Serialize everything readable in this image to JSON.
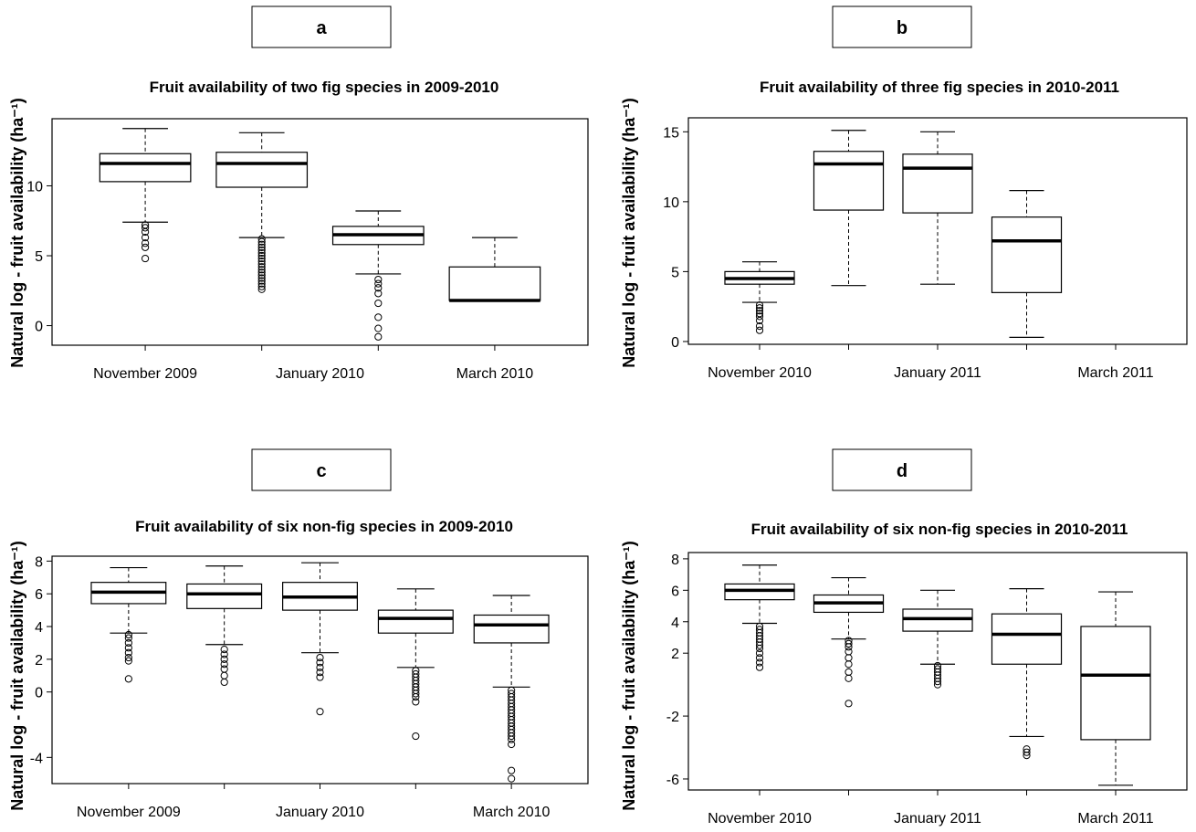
{
  "chart_data": [
    {
      "type": "box",
      "panel": "a",
      "title": "Fruit availability of two fig species in 2009-2010",
      "ylabel": "Natural log - fruit availability (ha⁻¹)",
      "ylim": [
        -1.4,
        14.8
      ],
      "yticks": [
        0,
        5,
        10
      ],
      "xticks": [
        "November 2009",
        "January 2010",
        "March 2010"
      ],
      "n_slots": 4,
      "boxes": [
        {
          "pos": 1,
          "min": 7.4,
          "q1": 10.3,
          "median": 11.6,
          "q3": 12.3,
          "max": 14.1,
          "outliers": [
            7.2,
            7.0,
            6.7,
            6.3,
            5.9,
            5.6,
            4.8
          ]
        },
        {
          "pos": 2,
          "min": 6.3,
          "q1": 9.9,
          "median": 11.6,
          "q3": 12.4,
          "max": 13.8,
          "outliers": [
            6.2,
            6.0,
            5.8,
            5.6,
            5.4,
            5.2,
            5.0,
            4.8,
            4.6,
            4.4,
            4.2,
            4.0,
            3.8,
            3.6,
            3.4,
            3.2,
            3.0,
            2.8,
            2.6
          ]
        },
        {
          "pos": 3,
          "min": 3.7,
          "q1": 5.8,
          "median": 6.5,
          "q3": 7.1,
          "max": 8.2,
          "outliers": [
            3.3,
            3.0,
            2.7,
            2.3,
            1.6,
            0.6,
            -0.2,
            -0.8
          ]
        },
        {
          "pos": 4,
          "min": 1.8,
          "q1": 1.8,
          "median": 1.8,
          "q3": 4.2,
          "max": 6.3,
          "outliers": []
        }
      ]
    },
    {
      "type": "box",
      "panel": "b",
      "title": "Fruit availability of three fig species in 2010-2011",
      "ylabel": "Natural log - fruit availability (ha⁻¹)",
      "ylim": [
        -0.2,
        16
      ],
      "yticks": [
        0,
        5,
        10,
        15
      ],
      "xticks": [
        "November 2010",
        "January 2011",
        "March 2011"
      ],
      "n_slots": 5,
      "boxes": [
        {
          "pos": 1,
          "min": 2.8,
          "q1": 4.1,
          "median": 4.5,
          "q3": 5.0,
          "max": 5.7,
          "outliers": [
            2.6,
            2.4,
            2.2,
            2.0,
            1.8,
            1.5,
            1.1,
            0.8
          ]
        },
        {
          "pos": 2,
          "min": 4.0,
          "q1": 9.4,
          "median": 12.7,
          "q3": 13.6,
          "max": 15.1,
          "outliers": []
        },
        {
          "pos": 3,
          "min": 4.1,
          "q1": 9.2,
          "median": 12.4,
          "q3": 13.4,
          "max": 15.0,
          "outliers": []
        },
        {
          "pos": 4,
          "min": 0.3,
          "q1": 3.5,
          "median": 7.2,
          "q3": 8.9,
          "max": 10.8,
          "outliers": []
        }
      ]
    },
    {
      "type": "box",
      "panel": "c",
      "title": "Fruit availability of six non-fig species in 2009-2010",
      "ylabel": "Natural log - fruit availability (ha⁻¹)",
      "ylim": [
        -5.6,
        8.3
      ],
      "yticks": [
        -4,
        0,
        2,
        4,
        6,
        8
      ],
      "xticks": [
        "November 2009",
        "January 2010",
        "March 2010"
      ],
      "n_slots": 5,
      "boxes": [
        {
          "pos": 1,
          "min": 3.6,
          "q1": 5.4,
          "median": 6.1,
          "q3": 6.7,
          "max": 7.6,
          "outliers": [
            3.5,
            3.3,
            3.0,
            2.7,
            2.4,
            2.1,
            1.9,
            0.8
          ]
        },
        {
          "pos": 2,
          "min": 2.9,
          "q1": 5.1,
          "median": 6.0,
          "q3": 6.6,
          "max": 7.7,
          "outliers": [
            2.6,
            2.3,
            2.0,
            1.7,
            1.4,
            1.0,
            0.6
          ]
        },
        {
          "pos": 3,
          "min": 2.4,
          "q1": 5.0,
          "median": 5.8,
          "q3": 6.7,
          "max": 7.9,
          "outliers": [
            2.1,
            1.8,
            1.5,
            1.2,
            0.9,
            -1.2
          ]
        },
        {
          "pos": 4,
          "min": 1.5,
          "q1": 3.6,
          "median": 4.5,
          "q3": 5.0,
          "max": 6.3,
          "outliers": [
            1.3,
            1.1,
            0.9,
            0.7,
            0.5,
            0.3,
            0.1,
            -0.1,
            -0.3,
            -0.6,
            -2.7
          ]
        },
        {
          "pos": 5,
          "min": 0.3,
          "q1": 3.0,
          "median": 4.1,
          "q3": 4.7,
          "max": 5.9,
          "outliers": [
            0.1,
            -0.1,
            -0.3,
            -0.5,
            -0.7,
            -0.9,
            -1.1,
            -1.3,
            -1.5,
            -1.7,
            -1.9,
            -2.1,
            -2.3,
            -2.5,
            -2.7,
            -2.9,
            -3.2,
            -4.8,
            -5.3
          ]
        }
      ]
    },
    {
      "type": "box",
      "panel": "d",
      "title": "Fruit availability of six non-fig species in 2010-2011",
      "ylabel": "Natural log - fruit availability (ha⁻¹)",
      "ylim": [
        -6.7,
        8.4
      ],
      "yticks": [
        -6,
        -2,
        2,
        4,
        6,
        8
      ],
      "xticks": [
        "November 2010",
        "January 2011",
        "March 2011"
      ],
      "n_slots": 5,
      "boxes": [
        {
          "pos": 1,
          "min": 3.9,
          "q1": 5.4,
          "median": 6.0,
          "q3": 6.4,
          "max": 7.6,
          "outliers": [
            3.7,
            3.5,
            3.3,
            3.1,
            2.9,
            2.7,
            2.5,
            2.3,
            2.0,
            1.7,
            1.4,
            1.1
          ]
        },
        {
          "pos": 2,
          "min": 2.9,
          "q1": 4.6,
          "median": 5.2,
          "q3": 5.7,
          "max": 6.8,
          "outliers": [
            2.8,
            2.6,
            2.4,
            2.1,
            1.7,
            1.3,
            0.8,
            0.4,
            -1.2
          ]
        },
        {
          "pos": 3,
          "min": 1.3,
          "q1": 3.4,
          "median": 4.2,
          "q3": 4.8,
          "max": 6.0,
          "outliers": [
            1.2,
            1.0,
            0.8,
            0.6,
            0.4,
            0.2,
            0.0
          ]
        },
        {
          "pos": 4,
          "min": -3.3,
          "q1": 1.3,
          "median": 3.2,
          "q3": 4.5,
          "max": 6.1,
          "outliers": [
            -4.1,
            -4.3,
            -4.5
          ]
        },
        {
          "pos": 5,
          "min": -6.4,
          "q1": -3.5,
          "median": 0.6,
          "q3": 3.7,
          "max": 5.9,
          "outliers": []
        }
      ]
    }
  ],
  "panels": [
    {
      "letter": "a"
    },
    {
      "letter": "b"
    },
    {
      "letter": "c"
    },
    {
      "letter": "d"
    }
  ]
}
